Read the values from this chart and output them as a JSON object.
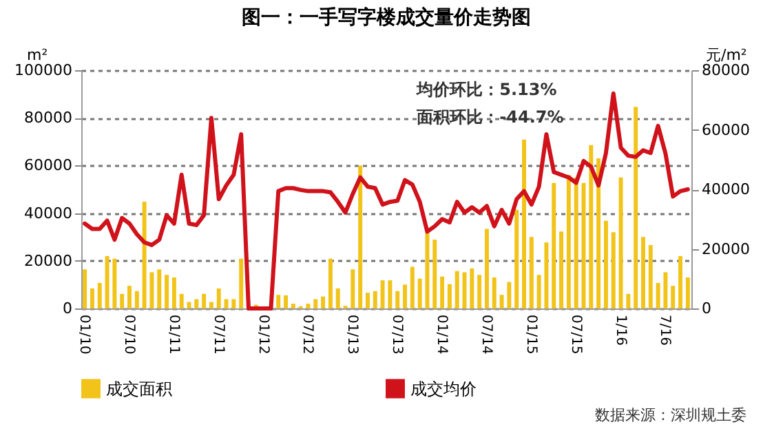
{
  "chart_data": {
    "type": "bar",
    "title": "图一：一手写字楼成交量价走势图",
    "categories": [
      "01/10",
      null,
      null,
      null,
      null,
      null,
      "07/10",
      null,
      null,
      null,
      null,
      null,
      "01/11",
      null,
      null,
      null,
      null,
      null,
      "07/11",
      null,
      null,
      null,
      null,
      null,
      "01/12",
      null,
      null,
      null,
      null,
      null,
      "07/12",
      null,
      null,
      null,
      null,
      null,
      "01/13",
      null,
      null,
      null,
      null,
      null,
      "07/13",
      null,
      null,
      null,
      null,
      null,
      "01/14",
      null,
      null,
      null,
      null,
      null,
      "07/14",
      null,
      null,
      null,
      null,
      null,
      "01/15",
      null,
      null,
      null,
      null,
      null,
      "07/15",
      null,
      null,
      null,
      null,
      null,
      "1/16",
      null,
      null,
      null,
      null,
      null,
      "7/16",
      null,
      null,
      null
    ],
    "series": [
      {
        "name": "成交面积",
        "color": "#f2c318",
        "values": [
          16400,
          8400,
          10700,
          22000,
          20900,
          6100,
          9500,
          7300,
          44800,
          15200,
          16400,
          14100,
          13000,
          6100,
          2700,
          3900,
          6100,
          2700,
          8400,
          3900,
          3900,
          20900,
          null,
          1600,
          500,
          null,
          5700,
          5500,
          2000,
          900,
          2000,
          3900,
          5000,
          20900,
          8400,
          1100,
          16400,
          60000,
          6600,
          7300,
          11800,
          11800,
          7300,
          10000,
          17500,
          12500,
          32300,
          28900,
          13400,
          10200,
          15700,
          15200,
          16800,
          14100,
          33400,
          13000,
          5700,
          11100,
          41400,
          70900,
          30000,
          14100,
          27700,
          52700,
          32300,
          56100,
          55000,
          52700,
          68600,
          63000,
          36800,
          32000,
          55000,
          6100,
          84600,
          30000,
          26600,
          10700,
          15200,
          9500,
          22000,
          13000
        ]
      },
      {
        "name": "成交均价",
        "type": "line",
        "axis": "y2",
        "color": "#d0121b",
        "values": [
          28500,
          26700,
          26700,
          29500,
          23100,
          30400,
          28500,
          24900,
          22200,
          21300,
          23100,
          31300,
          28500,
          44900,
          28500,
          28000,
          31300,
          64000,
          36700,
          41300,
          44900,
          58500,
          0,
          0,
          0,
          0,
          39400,
          40400,
          40400,
          39800,
          39400,
          39400,
          39400,
          39000,
          35800,
          32200,
          38500,
          44000,
          40900,
          40400,
          34900,
          35800,
          36200,
          43100,
          41600,
          35800,
          25800,
          27600,
          30000,
          28900,
          35800,
          32200,
          34000,
          32200,
          34400,
          27600,
          33100,
          28500,
          36700,
          39400,
          34900,
          40900,
          58500,
          45800,
          44900,
          44000,
          42200,
          49500,
          47600,
          41300,
          52200,
          72200,
          54000,
          51300,
          50900,
          53100,
          52200,
          61300,
          52000,
          37600,
          39400,
          40000
        ]
      }
    ],
    "ylabel": "m²",
    "y2label": "元/m²",
    "ylim": [
      0,
      100000
    ],
    "yticks": [
      0,
      20000,
      40000,
      60000,
      80000,
      100000
    ],
    "y2lim": [
      0,
      80000
    ],
    "y2ticks": [
      0,
      20000,
      40000,
      60000,
      80000
    ],
    "grid": "y",
    "legend": "bottom",
    "annotations": [
      "均价环比：5.13%",
      "面积环比：-44.7%",
      "数据来源：深圳规土委"
    ]
  }
}
